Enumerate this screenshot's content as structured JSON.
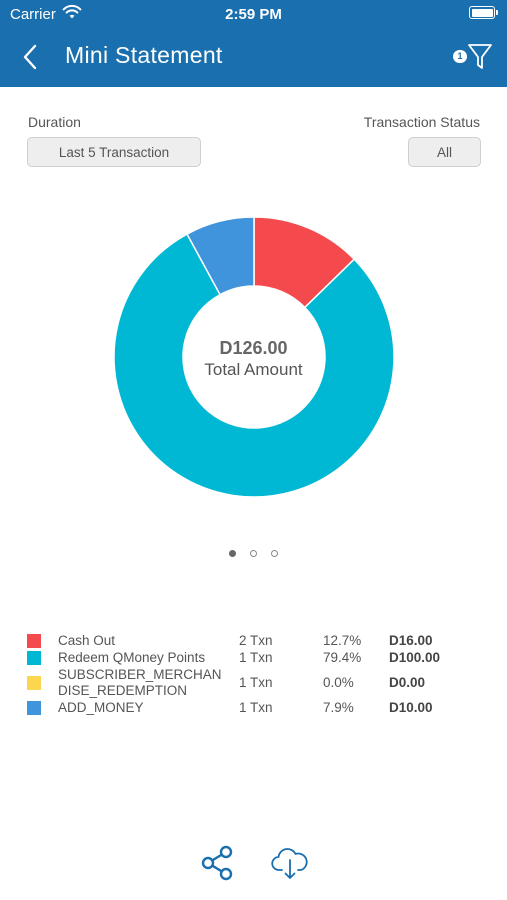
{
  "status_bar": {
    "carrier": "Carrier",
    "time": "2:59 PM"
  },
  "header": {
    "title": "Mini Statement",
    "filter_count": "1"
  },
  "filters": {
    "duration_label": "Duration",
    "duration_value": "Last 5 Transaction",
    "status_label": "Transaction Status",
    "status_value": "All"
  },
  "chart_data": {
    "type": "pie",
    "donut": true,
    "center_value": "D126.00",
    "center_label": "Total Amount",
    "categories": [
      "Cash Out",
      "Redeem QMoney Points",
      "SUBSCRIBER_MERCHANDISE_REDEMPTION",
      "ADD_MONEY"
    ],
    "values": [
      16.0,
      100.0,
      0.0,
      10.0
    ],
    "colors": [
      "#f44a4e",
      "#00b8d4",
      "#fdd64f",
      "#3f94dc"
    ]
  },
  "pager": {
    "pages": 3,
    "active": 0
  },
  "legend": [
    {
      "name": "Cash Out",
      "txn": "2 Txn",
      "pct": "12.7%",
      "amount": "D16.00",
      "color": "#f44a4e"
    },
    {
      "name": "Redeem QMoney Points",
      "txn": "1 Txn",
      "pct": "79.4%",
      "amount": "D100.00",
      "color": "#00b8d4"
    },
    {
      "name_line1": "SUBSCRIBER_MERCHAN",
      "name_line2": "DISE_REDEMPTION",
      "txn": "1 Txn",
      "pct": "0.0%",
      "amount": "D0.00",
      "color": "#fdd64f"
    },
    {
      "name": "ADD_MONEY",
      "txn": "1 Txn",
      "pct": "7.9%",
      "amount": "D10.00",
      "color": "#3f94dc"
    }
  ],
  "actions": {
    "share_icon": "share-icon",
    "download_icon": "cloud-download-icon"
  },
  "colors": {
    "header": "#1a6fae",
    "accent": "#1a6fae"
  }
}
